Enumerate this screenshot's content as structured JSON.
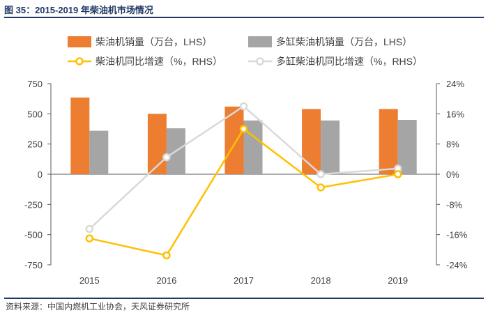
{
  "figure": {
    "title": "图 35：2015-2019 年柴油机市场情况",
    "source": "资料来源：中国内燃机工业协会，天风证券研究所"
  },
  "colors": {
    "diesel_volume": "#ed7d31",
    "multi_cyl_volume": "#a5a5a5",
    "diesel_yoy": "#ffc000",
    "multi_cyl_yoy": "#d9d9d9",
    "title_rule": "#1f3864",
    "axis": "#595959"
  },
  "chart_data": {
    "type": "bar",
    "categories": [
      "2015",
      "2016",
      "2017",
      "2018",
      "2019"
    ],
    "series": [
      {
        "name": "柴油机销量（万台，LHS）",
        "kind": "bar",
        "axis": "left",
        "values": [
          635,
          500,
          560,
          540,
          540
        ]
      },
      {
        "name": "多缸柴油机销量（万台，LHS）",
        "kind": "bar",
        "axis": "left",
        "values": [
          360,
          380,
          445,
          445,
          450
        ]
      },
      {
        "name": "柴油机同比增速（%，RHS）",
        "kind": "line",
        "axis": "right",
        "values": [
          -17.0,
          -21.5,
          12.0,
          -3.5,
          0.0
        ]
      },
      {
        "name": "多缸柴油机同比增速（%，RHS）",
        "kind": "line",
        "axis": "right",
        "values": [
          -14.5,
          4.5,
          18.0,
          0.0,
          1.5
        ]
      }
    ],
    "left_axis": {
      "ylim": [
        -750,
        750
      ],
      "ticks": [
        "750",
        "500",
        "250",
        "0",
        "-250",
        "-500",
        "-750"
      ],
      "tick_values": [
        750,
        500,
        250,
        0,
        -250,
        -500,
        -750
      ]
    },
    "right_axis": {
      "ylim": [
        -24,
        24
      ],
      "ticks": [
        "24%",
        "16%",
        "8%",
        "0%",
        "-8%",
        "-16%",
        "-24%"
      ],
      "tick_values": [
        24,
        16,
        8,
        0,
        -8,
        -16,
        -24
      ]
    },
    "grid": false,
    "legend_position": "top"
  }
}
